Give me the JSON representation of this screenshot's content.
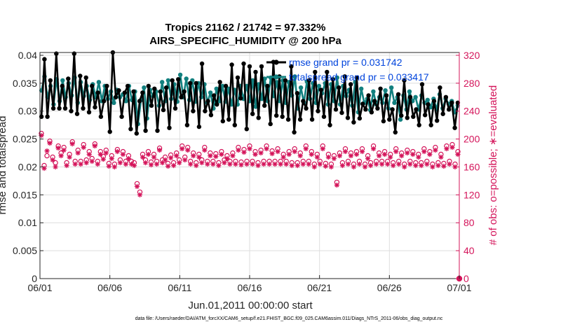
{
  "chart_data": {
    "type": "line",
    "title": "Tropics 21162 / 21742 = 97.332%",
    "subtitle": "AIRS_SPECIFIC_HUMIDITY @ 200 hPa",
    "xlabel": "Jun.01,2011 00:00:00 start",
    "ylabel_left": "rmse and totalspread",
    "ylabel_right": "# of obs: o=possible; ∗=evaluated",
    "footnote": "data file: /Users/raeder/DAI/ATM_forcXX/CAM6_setup/f.e21.FHIST_BGC.f09_025.CAM6assim.011/Diags_NTrS_2011-06/obs_diag_output.nc",
    "x_tick_labels": [
      "06/01",
      "06/06",
      "06/11",
      "06/16",
      "06/21",
      "06/26",
      "07/01"
    ],
    "x_tick_days": [
      0,
      5,
      10,
      15,
      20,
      25,
      30
    ],
    "xlim": [
      0,
      30
    ],
    "ylim_left": [
      0,
      0.0405
    ],
    "ylim_right": [
      0,
      324
    ],
    "y_ticks_left": [
      "0",
      "0.005",
      "0.01",
      "0.015",
      "0.02",
      "0.025",
      "0.03",
      "0.035",
      "0.04"
    ],
    "y_ticks_right": [
      "0",
      "40",
      "80",
      "120",
      "160",
      "200",
      "240",
      "280",
      "320"
    ],
    "grid": true,
    "legend_position": "top-right",
    "colors": {
      "rmse": "#000000",
      "totalspread": "#12807f",
      "obs": "#d4145a",
      "legend_text": "#0044dd"
    },
    "series": [
      {
        "name": "rmse",
        "legend": "rmse grand pr = 0.031742",
        "axis": "left",
        "values": [
          0.029,
          0.0393,
          0.029,
          0.0355,
          0.0305,
          0.0403,
          0.0305,
          0.0345,
          0.0305,
          0.0358,
          0.03,
          0.0403,
          0.0295,
          0.0363,
          0.0305,
          0.036,
          0.0298,
          0.0345,
          0.0307,
          0.0333,
          0.029,
          0.0318,
          0.0345,
          0.0263,
          0.0405,
          0.0325,
          0.0337,
          0.029,
          0.0333,
          0.0345,
          0.0268,
          0.0335,
          0.026,
          0.0318,
          0.0333,
          0.0265,
          0.0345,
          0.031,
          0.034,
          0.0265,
          0.0335,
          0.0302,
          0.0342,
          0.027,
          0.0355,
          0.0305,
          0.0357,
          0.0325,
          0.0335,
          0.0275,
          0.035,
          0.03,
          0.035,
          0.0272,
          0.0385,
          0.03,
          0.0318,
          0.0293,
          0.0328,
          0.0312,
          0.0352,
          0.0282,
          0.0345,
          0.0285,
          0.0383,
          0.0275,
          0.036,
          0.0323,
          0.0385,
          0.0268,
          0.038,
          0.0295,
          0.037,
          0.0288,
          0.038,
          0.031,
          0.0345,
          0.0277,
          0.0388,
          0.0292,
          0.0362,
          0.029,
          0.0355,
          0.0285,
          0.038,
          0.0262,
          0.0332,
          0.0285,
          0.0318,
          0.0305,
          0.0355,
          0.0285,
          0.037,
          0.03,
          0.0338,
          0.029,
          0.037,
          0.0275,
          0.0357,
          0.0303,
          0.0342,
          0.0297,
          0.0362,
          0.0288,
          0.0348,
          0.028,
          0.036,
          0.0287,
          0.0313,
          0.0303,
          0.0328,
          0.0298,
          0.0318,
          0.0305,
          0.034,
          0.0282,
          0.0328,
          0.0285,
          0.0303,
          0.0262,
          0.033,
          0.0292,
          0.0355,
          0.0288,
          0.0325,
          0.029,
          0.0303,
          0.0275,
          0.0348,
          0.0293,
          0.0312,
          0.0275,
          0.0318,
          0.0283,
          0.0342,
          0.0295,
          0.0325,
          0.0303,
          0.0315,
          0.027,
          0.0315
        ]
      },
      {
        "name": "totalspread",
        "legend": "totalspread grand pr = 0.033417",
        "axis": "left",
        "values": [
          0.0337,
          0.0362,
          0.0325,
          0.0345,
          0.0312,
          0.0357,
          0.0318,
          0.0355,
          0.0325,
          0.035,
          0.0328,
          0.036,
          0.0315,
          0.0352,
          0.0327,
          0.0345,
          0.032,
          0.0348,
          0.0325,
          0.0352,
          0.0318,
          0.0345,
          0.0322,
          0.0335,
          0.0315,
          0.0338,
          0.0325,
          0.033,
          0.0318,
          0.0345,
          0.032,
          0.0335,
          0.0277,
          0.032,
          0.0342,
          0.0287,
          0.0338,
          0.0327,
          0.0335,
          0.031,
          0.0352,
          0.0318,
          0.0355,
          0.0322,
          0.0348,
          0.0317,
          0.0365,
          0.0325,
          0.0358,
          0.032,
          0.0355,
          0.0317,
          0.035,
          0.0325,
          0.0348,
          0.0315,
          0.0333,
          0.0305,
          0.034,
          0.0318,
          0.0345,
          0.0317,
          0.034,
          0.0312,
          0.0338,
          0.0312,
          0.0345,
          0.0322,
          0.0345,
          0.0318,
          0.0355,
          0.0308,
          0.0348,
          0.0322,
          0.0358,
          0.0318,
          0.036,
          0.0327,
          0.0352,
          0.0318,
          0.0355,
          0.0315,
          0.0352,
          0.0328,
          0.0362,
          0.0305,
          0.0342,
          0.0315,
          0.0353,
          0.0322,
          0.035,
          0.0315,
          0.0345,
          0.0332,
          0.035,
          0.0312,
          0.0348,
          0.0318,
          0.036,
          0.0312,
          0.0345,
          0.0327,
          0.0338,
          0.031,
          0.0352,
          0.0298,
          0.034,
          0.0315,
          0.0322,
          0.0302,
          0.0335,
          0.0312,
          0.0325,
          0.0315,
          0.0337,
          0.0305,
          0.0342,
          0.0315,
          0.0325,
          0.0285,
          0.0328,
          0.0303,
          0.0335,
          0.0318,
          0.0325,
          0.0303,
          0.0328,
          0.0315,
          0.032,
          0.0307,
          0.0322,
          0.0303,
          0.033,
          0.0305,
          0.0322,
          0.0313,
          0.0318,
          0.0298,
          0.031
        ]
      },
      {
        "name": "possible",
        "legend": "o=possible",
        "axis": "right",
        "marker": "o",
        "values": [
          208,
          162,
          176,
          197,
          174,
          166,
          190,
          180,
          188,
          166,
          178,
          196,
          168,
          184,
          168,
          192,
          170,
          182,
          172,
          193,
          168,
          182,
          175,
          184,
          165,
          176,
          164,
          185,
          170,
          182,
          168,
          176,
          168,
          166,
          136,
          124,
          178,
          170,
          182,
          167,
          178,
          168,
          187,
          170,
          174,
          165,
          177,
          166,
          180,
          170,
          190,
          174,
          188,
          168,
          180,
          166,
          178,
          170,
          188,
          168,
          180,
          168,
          179,
          166,
          182,
          170,
          176,
          168,
          180,
          168,
          188,
          167,
          185,
          168,
          190,
          168,
          182,
          166,
          184,
          168,
          190,
          168,
          183,
          168,
          186,
          168,
          178,
          168,
          182,
          166,
          186,
          166,
          180,
          168,
          190,
          168,
          182,
          164,
          178,
          168,
          190,
          165,
          178,
          164,
          176,
          138,
          180,
          166,
          186,
          168,
          180,
          164,
          182,
          168,
          186,
          164,
          176,
          166,
          190,
          168,
          180,
          168,
          182,
          168,
          178,
          166,
          186,
          168,
          180,
          164,
          184,
          168,
          182,
          166,
          178,
          166,
          186,
          168,
          182,
          164,
          188,
          166,
          178,
          165,
          190,
          168,
          192,
          164,
          182
        ]
      },
      {
        "name": "evaluated",
        "legend": "∗=evaluated",
        "axis": "right",
        "marker": "*",
        "values": [
          205,
          158,
          183,
          194,
          170,
          160,
          187,
          176,
          184,
          162,
          174,
          193,
          164,
          180,
          164,
          188,
          166,
          178,
          168,
          190,
          164,
          178,
          171,
          180,
          161,
          172,
          160,
          182,
          166,
          178,
          164,
          172,
          164,
          162,
          132,
          120,
          174,
          166,
          178,
          163,
          174,
          164,
          184,
          166,
          170,
          161,
          173,
          162,
          176,
          166,
          186,
          170,
          184,
          164,
          176,
          162,
          174,
          166,
          184,
          164,
          176,
          164,
          175,
          162,
          178,
          166,
          172,
          164,
          176,
          164,
          184,
          163,
          181,
          164,
          186,
          164,
          178,
          162,
          180,
          164,
          186,
          164,
          179,
          164,
          182,
          164,
          174,
          164,
          178,
          162,
          182,
          162,
          176,
          164,
          186,
          164,
          178,
          160,
          174,
          164,
          186,
          161,
          174,
          160,
          172,
          134,
          176,
          162,
          182,
          164,
          176,
          160,
          178,
          164,
          182,
          160,
          172,
          162,
          186,
          164,
          176,
          164,
          178,
          164,
          174,
          162,
          182,
          164,
          176,
          160,
          180,
          164,
          178,
          162,
          174,
          162,
          182,
          164,
          178,
          160,
          184,
          162,
          174,
          161,
          186,
          164,
          188,
          160,
          178
        ]
      }
    ],
    "end_marker": {
      "value": 0,
      "axis": "right",
      "day": 30
    }
  }
}
